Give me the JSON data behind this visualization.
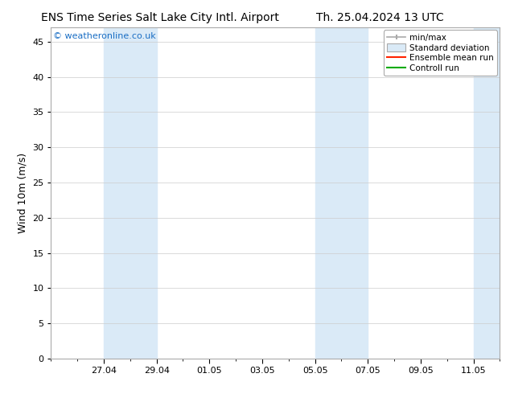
{
  "title_left": "ENS Time Series Salt Lake City Intl. Airport",
  "title_right": "Th. 25.04.2024 13 UTC",
  "ylabel": "Wind 10m (m/s)",
  "watermark": "© weatheronline.co.uk",
  "watermark_color": "#1a6ec4",
  "ylim": [
    0,
    47
  ],
  "yticks": [
    0,
    5,
    10,
    15,
    20,
    25,
    30,
    35,
    40,
    45
  ],
  "x_tick_labels": [
    "27.04",
    "29.04",
    "01.05",
    "03.05",
    "05.05",
    "07.05",
    "09.05",
    "11.05"
  ],
  "x_tick_positions": [
    2,
    4,
    6,
    8,
    10,
    12,
    14,
    16
  ],
  "x_min": 0,
  "x_max": 17,
  "shaded_bands": [
    {
      "x_start": 2,
      "x_end": 4,
      "color": "#daeaf7"
    },
    {
      "x_start": 10,
      "x_end": 12,
      "color": "#daeaf7"
    },
    {
      "x_start": 16,
      "x_end": 17,
      "color": "#daeaf7"
    }
  ],
  "background_color": "#ffffff",
  "plot_bg_color": "#ffffff",
  "grid_color": "#cccccc",
  "title_fontsize": 10,
  "ylabel_fontsize": 9,
  "tick_fontsize": 8,
  "watermark_fontsize": 8,
  "legend_fontsize": 7.5
}
